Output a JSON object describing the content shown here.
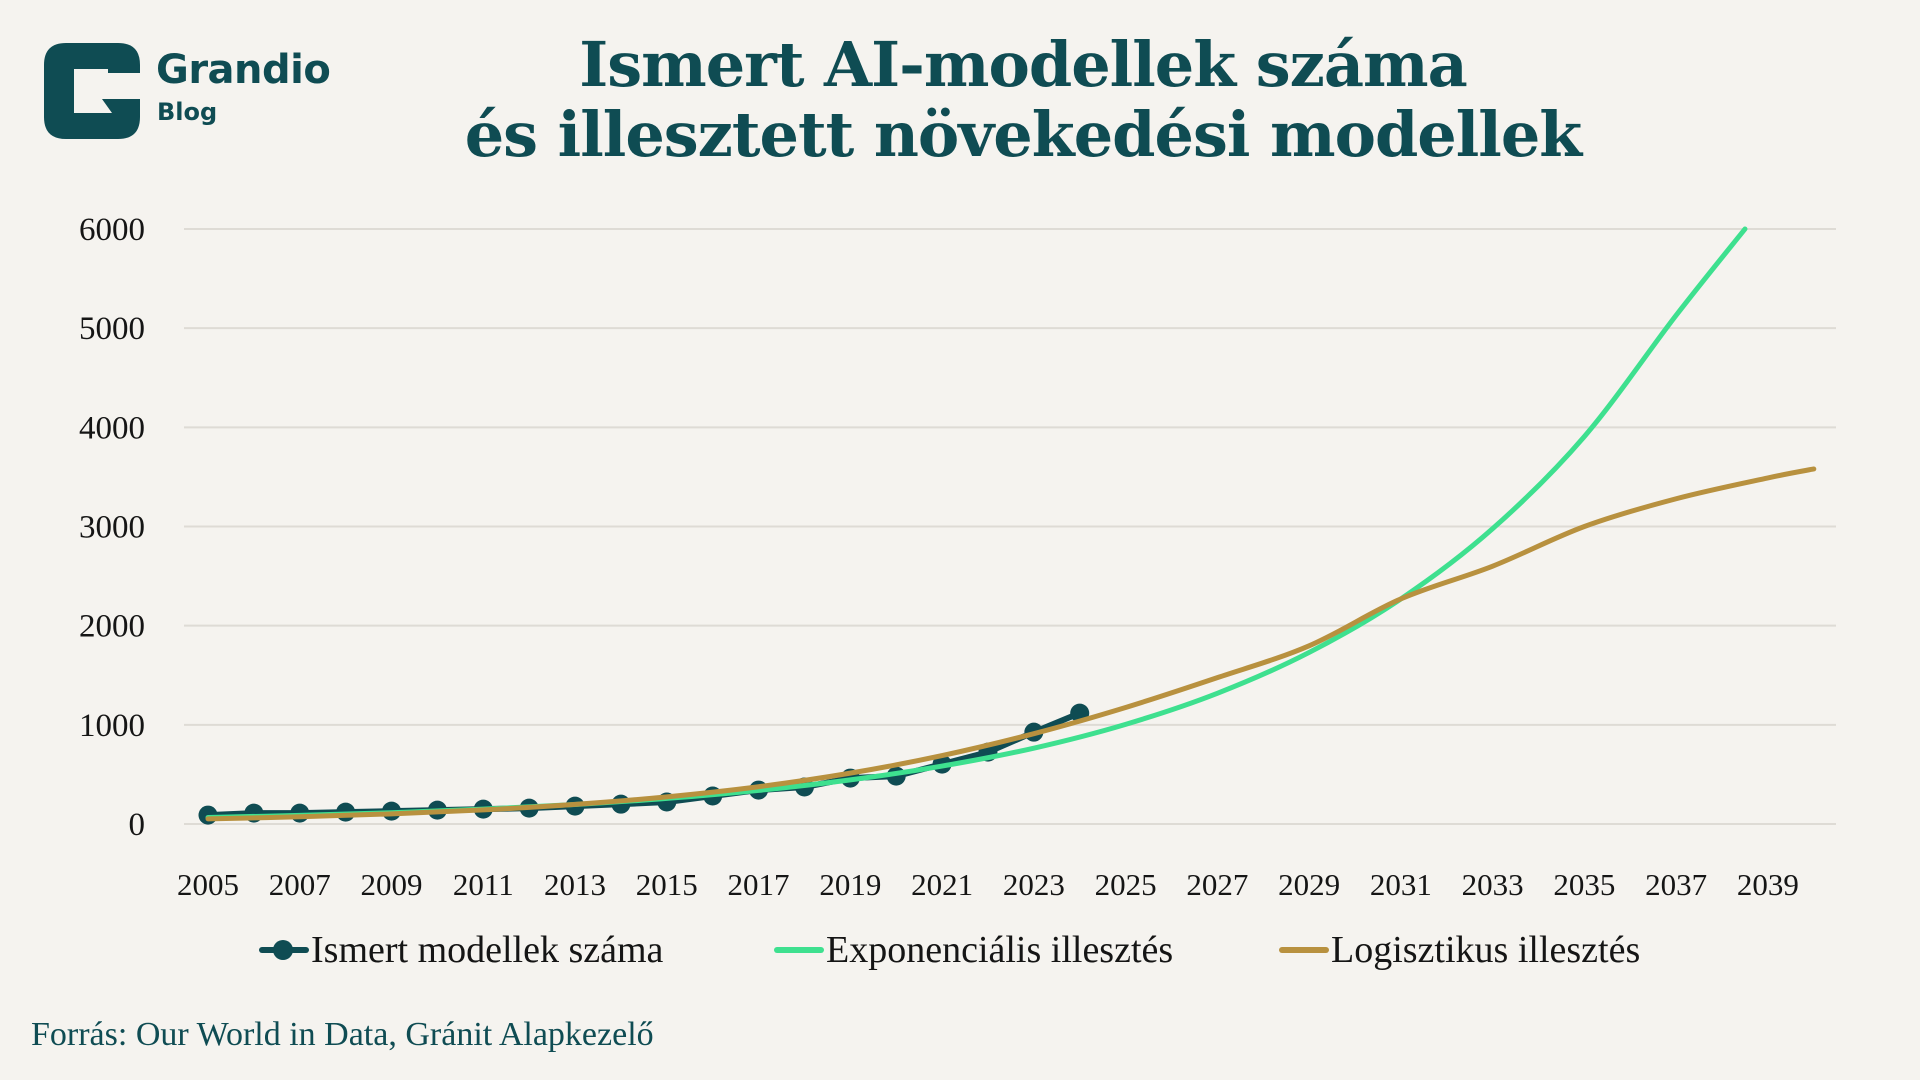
{
  "brand": {
    "name": "Grandio",
    "sub": "Blog",
    "color": "#0f4c53"
  },
  "colors": {
    "background": "#f5f3ef",
    "grid": "#dedbd5",
    "text": "#151515",
    "observed": "#0f4c53",
    "exponential": "#3ee08f",
    "logistic": "#b8913f"
  },
  "source": "Forrás: Our World in Data, Gránit Alapkezelő",
  "chart_data": {
    "type": "line",
    "title": "Ismert AI-modellek száma és illesztett növekedési modellek",
    "title_lines": [
      "Ismert AI-modellek száma",
      "és illesztett növekedési modellek"
    ],
    "xlabel": "",
    "ylabel": "",
    "xlim": [
      2005,
      2040
    ],
    "ylim": [
      0,
      6000
    ],
    "grid": true,
    "legend_position": "bottom",
    "y_ticks": [
      "0",
      "1000",
      "2000",
      "3000",
      "4000",
      "5000",
      "6000"
    ],
    "y_tick_values": [
      0,
      1000,
      2000,
      3000,
      4000,
      5000,
      6000
    ],
    "x_ticks": [
      "2005",
      "2007",
      "2009",
      "2011",
      "2013",
      "2015",
      "2017",
      "2019",
      "2021",
      "2023",
      "2025",
      "2027",
      "2029",
      "2031",
      "2033",
      "2035",
      "2037",
      "2039"
    ],
    "x_tick_values": [
      2005,
      2007,
      2009,
      2011,
      2013,
      2015,
      2017,
      2019,
      2021,
      2023,
      2025,
      2027,
      2029,
      2031,
      2033,
      2035,
      2037,
      2039
    ],
    "series": [
      {
        "name": "Ismert modellek száma",
        "style": "line-markers",
        "x": [
          2005,
          2006,
          2007,
          2008,
          2009,
          2010,
          2011,
          2012,
          2013,
          2014,
          2015,
          2016,
          2017,
          2018,
          2019,
          2020,
          2021,
          2022,
          2023,
          2024
        ],
        "values": [
          90,
          110,
          110,
          120,
          130,
          140,
          150,
          160,
          180,
          200,
          222,
          282,
          342,
          373,
          463,
          483,
          604,
          725,
          926,
          1118
        ]
      },
      {
        "name": "Exponenciális illesztés",
        "style": "line",
        "x": [
          2005,
          2007,
          2009,
          2011,
          2013,
          2015,
          2017,
          2019,
          2021,
          2023,
          2025,
          2027,
          2029,
          2031,
          2033,
          2035,
          2037,
          2038.5
        ],
        "values": [
          66,
          87,
          114,
          150,
          197,
          258,
          339,
          445,
          584,
          765,
          1005,
          1318,
          1730,
          2270,
          2978,
          3908,
          5130,
          6000
        ]
      },
      {
        "name": "Logisztikus illesztés",
        "style": "line",
        "x": [
          2005,
          2007,
          2009,
          2011,
          2013,
          2015,
          2017,
          2019,
          2021,
          2023,
          2025,
          2027,
          2029,
          2031,
          2033,
          2035,
          2037,
          2039,
          2040
        ],
        "values": [
          52,
          73,
          102,
          142,
          198,
          274,
          376,
          513,
          690,
          911,
          1175,
          1476,
          1797,
          2270,
          2600,
          3000,
          3280,
          3490,
          3580
        ]
      }
    ]
  }
}
